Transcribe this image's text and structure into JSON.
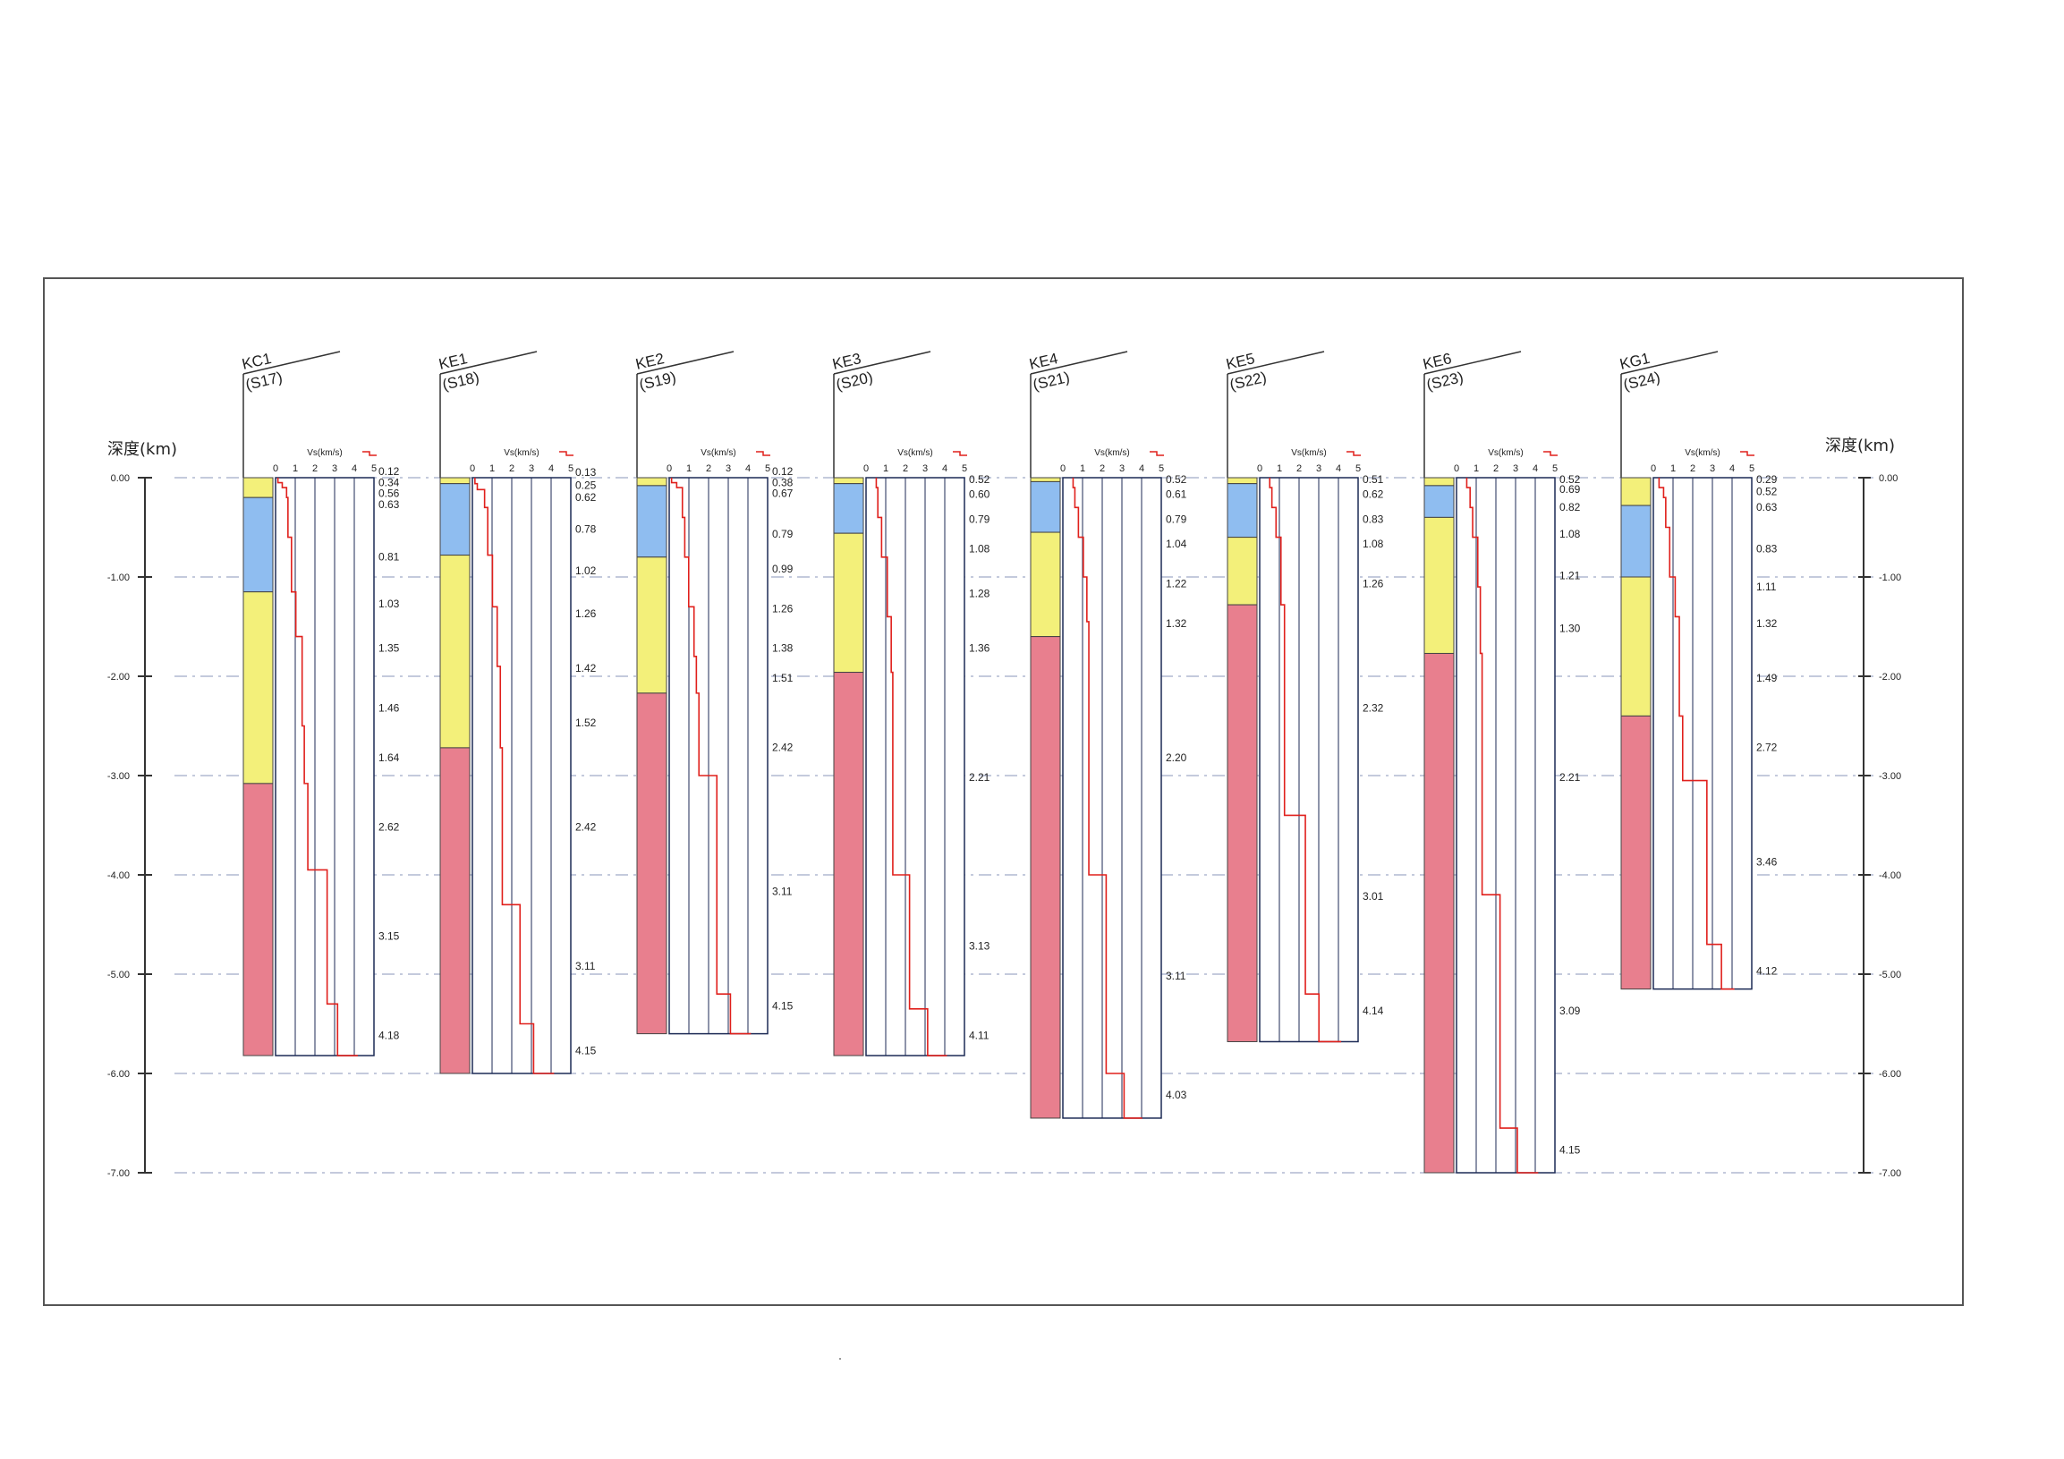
{
  "left_axis_title": "深度(km)",
  "right_axis_title": "深度(km)",
  "depth_ticks": [
    "0.00",
    "-1.00",
    "-2.00",
    "-3.00",
    "-4.00",
    "-5.00",
    "-6.00",
    "-7.00"
  ],
  "vs_axis_label": "Vs(km/s)",
  "vs_ticks": [
    "0",
    "1",
    "2",
    "3",
    "4",
    "5"
  ],
  "colors": {
    "layer_yellow": "#f3f07a",
    "layer_blue": "#8fbdf0",
    "layer_red": "#e87f8e",
    "profile_line": "#e0201c",
    "grid": "#1c2a55"
  },
  "columns": [
    {
      "name": "KC1",
      "code": "(S17)",
      "total_depth": 5.82,
      "layers": [
        {
          "from": 0,
          "to": 0.2,
          "color": "yellow"
        },
        {
          "from": 0.2,
          "to": 1.15,
          "color": "blue"
        },
        {
          "from": 1.15,
          "to": 3.08,
          "color": "yellow"
        },
        {
          "from": 3.08,
          "to": 5.82,
          "color": "red"
        }
      ],
      "profile": [
        {
          "from": 0,
          "to": 0.05,
          "vs": 0.12
        },
        {
          "from": 0.05,
          "to": 0.1,
          "vs": 0.34
        },
        {
          "from": 0.1,
          "to": 0.2,
          "vs": 0.56
        },
        {
          "from": 0.2,
          "to": 0.6,
          "vs": 0.63
        },
        {
          "from": 0.6,
          "to": 1.15,
          "vs": 0.81
        },
        {
          "from": 1.15,
          "to": 1.6,
          "vs": 1.03
        },
        {
          "from": 1.6,
          "to": 2.5,
          "vs": 1.35
        },
        {
          "from": 2.5,
          "to": 3.08,
          "vs": 1.46
        },
        {
          "from": 3.08,
          "to": 3.95,
          "vs": 1.64
        },
        {
          "from": 3.95,
          "to": 5.3,
          "vs": 2.62
        },
        {
          "from": 5.3,
          "to": 5.82,
          "vs": 3.15
        },
        {
          "from": 5.82,
          "to": 5.82,
          "vs": 4.18
        }
      ],
      "labels": [
        {
          "text": "0.12",
          "depth": -0.08
        },
        {
          "text": "0.34",
          "depth": 0.03
        },
        {
          "text": "0.56",
          "depth": 0.14
        },
        {
          "text": "0.63",
          "depth": 0.25
        },
        {
          "text": "0.81",
          "depth": 0.78
        },
        {
          "text": "1.03",
          "depth": 1.25
        },
        {
          "text": "1.35",
          "depth": 1.7
        },
        {
          "text": "1.46",
          "depth": 2.3
        },
        {
          "text": "1.64",
          "depth": 2.8
        },
        {
          "text": "2.62",
          "depth": 3.5
        },
        {
          "text": "3.15",
          "depth": 4.6
        },
        {
          "text": "4.18",
          "depth": 5.6
        }
      ]
    },
    {
      "name": "KE1",
      "code": "(S18)",
      "total_depth": 6.0,
      "layers": [
        {
          "from": 0,
          "to": 0.06,
          "color": "yellow"
        },
        {
          "from": 0.06,
          "to": 0.78,
          "color": "blue"
        },
        {
          "from": 0.78,
          "to": 2.72,
          "color": "yellow"
        },
        {
          "from": 2.72,
          "to": 6.0,
          "color": "red"
        }
      ],
      "profile": [
        {
          "from": 0,
          "to": 0.06,
          "vs": 0.13
        },
        {
          "from": 0.06,
          "to": 0.12,
          "vs": 0.25
        },
        {
          "from": 0.12,
          "to": 0.3,
          "vs": 0.62
        },
        {
          "from": 0.3,
          "to": 0.78,
          "vs": 0.78
        },
        {
          "from": 0.78,
          "to": 1.3,
          "vs": 1.02
        },
        {
          "from": 1.3,
          "to": 1.9,
          "vs": 1.26
        },
        {
          "from": 1.9,
          "to": 2.72,
          "vs": 1.42
        },
        {
          "from": 2.72,
          "to": 4.3,
          "vs": 1.52
        },
        {
          "from": 4.3,
          "to": 5.5,
          "vs": 2.42
        },
        {
          "from": 5.5,
          "to": 6.0,
          "vs": 3.11
        },
        {
          "from": 6.0,
          "to": 6.0,
          "vs": 4.15
        }
      ],
      "labels": [
        {
          "text": "0.13",
          "depth": -0.07
        },
        {
          "text": "0.25",
          "depth": 0.06
        },
        {
          "text": "0.62",
          "depth": 0.18
        },
        {
          "text": "0.78",
          "depth": 0.5
        },
        {
          "text": "1.02",
          "depth": 0.92
        },
        {
          "text": "1.26",
          "depth": 1.35
        },
        {
          "text": "1.42",
          "depth": 1.9
        },
        {
          "text": "1.52",
          "depth": 2.45
        },
        {
          "text": "2.42",
          "depth": 3.5
        },
        {
          "text": "3.11",
          "depth": 4.9
        },
        {
          "text": "4.15",
          "depth": 5.75
        }
      ]
    },
    {
      "name": "KE2",
      "code": "(S19)",
      "total_depth": 5.6,
      "layers": [
        {
          "from": 0,
          "to": 0.08,
          "color": "yellow"
        },
        {
          "from": 0.08,
          "to": 0.8,
          "color": "blue"
        },
        {
          "from": 0.8,
          "to": 2.17,
          "color": "yellow"
        },
        {
          "from": 2.17,
          "to": 5.6,
          "color": "red"
        }
      ],
      "profile": [
        {
          "from": 0,
          "to": 0.05,
          "vs": 0.12
        },
        {
          "from": 0.05,
          "to": 0.1,
          "vs": 0.38
        },
        {
          "from": 0.1,
          "to": 0.4,
          "vs": 0.67
        },
        {
          "from": 0.4,
          "to": 0.8,
          "vs": 0.79
        },
        {
          "from": 0.8,
          "to": 1.3,
          "vs": 0.99
        },
        {
          "from": 1.3,
          "to": 1.8,
          "vs": 1.26
        },
        {
          "from": 1.8,
          "to": 2.17,
          "vs": 1.38
        },
        {
          "from": 2.17,
          "to": 3.0,
          "vs": 1.51
        },
        {
          "from": 3.0,
          "to": 5.2,
          "vs": 2.42
        },
        {
          "from": 5.2,
          "to": 5.6,
          "vs": 3.11
        },
        {
          "from": 5.6,
          "to": 5.6,
          "vs": 4.15
        }
      ],
      "labels": [
        {
          "text": "0.12",
          "depth": -0.08
        },
        {
          "text": "0.38",
          "depth": 0.03
        },
        {
          "text": "0.67",
          "depth": 0.14
        },
        {
          "text": "0.79",
          "depth": 0.55
        },
        {
          "text": "0.99",
          "depth": 0.9
        },
        {
          "text": "1.26",
          "depth": 1.3
        },
        {
          "text": "1.38",
          "depth": 1.7
        },
        {
          "text": "1.51",
          "depth": 2.0
        },
        {
          "text": "2.42",
          "depth": 2.7
        },
        {
          "text": "3.11",
          "depth": 4.15
        },
        {
          "text": "4.15",
          "depth": 5.3
        }
      ]
    },
    {
      "name": "KE3",
      "code": "(S20)",
      "total_depth": 5.82,
      "layers": [
        {
          "from": 0,
          "to": 0.06,
          "color": "yellow"
        },
        {
          "from": 0.06,
          "to": 0.56,
          "color": "blue"
        },
        {
          "from": 0.56,
          "to": 1.96,
          "color": "yellow"
        },
        {
          "from": 1.96,
          "to": 5.82,
          "color": "red"
        }
      ],
      "profile": [
        {
          "from": 0,
          "to": 0.1,
          "vs": 0.52
        },
        {
          "from": 0.1,
          "to": 0.4,
          "vs": 0.6
        },
        {
          "from": 0.4,
          "to": 0.8,
          "vs": 0.79
        },
        {
          "from": 0.8,
          "to": 1.4,
          "vs": 1.08
        },
        {
          "from": 1.4,
          "to": 1.96,
          "vs": 1.28
        },
        {
          "from": 1.96,
          "to": 4.0,
          "vs": 1.36
        },
        {
          "from": 4.0,
          "to": 5.35,
          "vs": 2.21
        },
        {
          "from": 5.35,
          "to": 5.82,
          "vs": 3.13
        },
        {
          "from": 5.82,
          "to": 5.82,
          "vs": 4.11
        }
      ],
      "labels": [
        {
          "text": "0.52",
          "depth": 0.0
        },
        {
          "text": "0.60",
          "depth": 0.15
        },
        {
          "text": "0.79",
          "depth": 0.4
        },
        {
          "text": "1.08",
          "depth": 0.7
        },
        {
          "text": "1.28",
          "depth": 1.15
        },
        {
          "text": "1.36",
          "depth": 1.7
        },
        {
          "text": "2.21",
          "depth": 3.0
        },
        {
          "text": "3.13",
          "depth": 4.7
        },
        {
          "text": "4.11",
          "depth": 5.6
        }
      ]
    },
    {
      "name": "KE4",
      "code": "(S21)",
      "total_depth": 6.45,
      "layers": [
        {
          "from": 0,
          "to": 0.04,
          "color": "yellow"
        },
        {
          "from": 0.04,
          "to": 0.55,
          "color": "blue"
        },
        {
          "from": 0.55,
          "to": 1.6,
          "color": "yellow"
        },
        {
          "from": 1.6,
          "to": 6.45,
          "color": "red"
        }
      ],
      "profile": [
        {
          "from": 0,
          "to": 0.1,
          "vs": 0.52
        },
        {
          "from": 0.1,
          "to": 0.3,
          "vs": 0.61
        },
        {
          "from": 0.3,
          "to": 0.6,
          "vs": 0.79
        },
        {
          "from": 0.6,
          "to": 1.0,
          "vs": 1.04
        },
        {
          "from": 1.0,
          "to": 1.45,
          "vs": 1.22
        },
        {
          "from": 1.45,
          "to": 4.0,
          "vs": 1.32
        },
        {
          "from": 4.0,
          "to": 6.0,
          "vs": 2.2
        },
        {
          "from": 6.0,
          "to": 6.45,
          "vs": 3.11
        },
        {
          "from": 6.45,
          "to": 6.45,
          "vs": 4.03
        }
      ],
      "labels": [
        {
          "text": "0.52",
          "depth": 0.0
        },
        {
          "text": "0.61",
          "depth": 0.15
        },
        {
          "text": "0.79",
          "depth": 0.4
        },
        {
          "text": "1.04",
          "depth": 0.65
        },
        {
          "text": "1.22",
          "depth": 1.05
        },
        {
          "text": "1.32",
          "depth": 1.45
        },
        {
          "text": "2.20",
          "depth": 2.8
        },
        {
          "text": "3.11",
          "depth": 5.0
        },
        {
          "text": "4.03",
          "depth": 6.2
        }
      ]
    },
    {
      "name": "KE5",
      "code": "(S22)",
      "total_depth": 5.68,
      "layers": [
        {
          "from": 0,
          "to": 0.06,
          "color": "yellow"
        },
        {
          "from": 0.06,
          "to": 0.6,
          "color": "blue"
        },
        {
          "from": 0.6,
          "to": 1.28,
          "color": "yellow"
        },
        {
          "from": 1.28,
          "to": 5.68,
          "color": "red"
        }
      ],
      "profile": [
        {
          "from": 0,
          "to": 0.1,
          "vs": 0.51
        },
        {
          "from": 0.1,
          "to": 0.3,
          "vs": 0.62
        },
        {
          "from": 0.3,
          "to": 0.6,
          "vs": 0.83
        },
        {
          "from": 0.6,
          "to": 1.28,
          "vs": 1.08
        },
        {
          "from": 1.28,
          "to": 3.4,
          "vs": 1.26
        },
        {
          "from": 3.4,
          "to": 5.2,
          "vs": 2.32
        },
        {
          "from": 5.2,
          "to": 5.68,
          "vs": 3.01
        },
        {
          "from": 5.68,
          "to": 5.68,
          "vs": 4.14
        }
      ],
      "labels": [
        {
          "text": "0.51",
          "depth": 0.0
        },
        {
          "text": "0.62",
          "depth": 0.15
        },
        {
          "text": "0.83",
          "depth": 0.4
        },
        {
          "text": "1.08",
          "depth": 0.65
        },
        {
          "text": "1.26",
          "depth": 1.05
        },
        {
          "text": "2.32",
          "depth": 2.3
        },
        {
          "text": "3.01",
          "depth": 4.2
        },
        {
          "text": "4.14",
          "depth": 5.35
        }
      ]
    },
    {
      "name": "KE6",
      "code": "(S23)",
      "total_depth": 7.0,
      "layers": [
        {
          "from": 0,
          "to": 0.08,
          "color": "yellow"
        },
        {
          "from": 0.08,
          "to": 0.4,
          "color": "blue"
        },
        {
          "from": 0.4,
          "to": 1.77,
          "color": "yellow"
        },
        {
          "from": 1.77,
          "to": 7.0,
          "color": "red"
        }
      ],
      "profile": [
        {
          "from": 0,
          "to": 0.1,
          "vs": 0.52
        },
        {
          "from": 0.1,
          "to": 0.3,
          "vs": 0.69
        },
        {
          "from": 0.3,
          "to": 0.6,
          "vs": 0.82
        },
        {
          "from": 0.6,
          "to": 1.1,
          "vs": 1.08
        },
        {
          "from": 1.1,
          "to": 1.77,
          "vs": 1.21
        },
        {
          "from": 1.77,
          "to": 4.2,
          "vs": 1.3
        },
        {
          "from": 4.2,
          "to": 6.55,
          "vs": 2.21
        },
        {
          "from": 6.55,
          "to": 7.0,
          "vs": 3.09
        },
        {
          "from": 7.0,
          "to": 7.0,
          "vs": 4.15
        }
      ],
      "labels": [
        {
          "text": "0.52",
          "depth": 0.0
        },
        {
          "text": "0.69",
          "depth": 0.1
        },
        {
          "text": "0.82",
          "depth": 0.28
        },
        {
          "text": "1.08",
          "depth": 0.55
        },
        {
          "text": "1.21",
          "depth": 0.97
        },
        {
          "text": "1.30",
          "depth": 1.5
        },
        {
          "text": "2.21",
          "depth": 3.0
        },
        {
          "text": "3.09",
          "depth": 5.35
        },
        {
          "text": "4.15",
          "depth": 6.75
        }
      ]
    },
    {
      "name": "KG1",
      "code": "(S24)",
      "total_depth": 5.15,
      "layers": [
        {
          "from": 0,
          "to": 0.28,
          "color": "yellow"
        },
        {
          "from": 0.28,
          "to": 1.0,
          "color": "blue"
        },
        {
          "from": 1.0,
          "to": 2.4,
          "color": "yellow"
        },
        {
          "from": 2.4,
          "to": 5.15,
          "color": "red"
        }
      ],
      "profile": [
        {
          "from": 0,
          "to": 0.1,
          "vs": 0.29
        },
        {
          "from": 0.1,
          "to": 0.2,
          "vs": 0.52
        },
        {
          "from": 0.2,
          "to": 0.5,
          "vs": 0.63
        },
        {
          "from": 0.5,
          "to": 1.0,
          "vs": 0.83
        },
        {
          "from": 1.0,
          "to": 1.4,
          "vs": 1.11
        },
        {
          "from": 1.4,
          "to": 2.4,
          "vs": 1.32
        },
        {
          "from": 2.4,
          "to": 3.05,
          "vs": 1.49
        },
        {
          "from": 3.05,
          "to": 4.7,
          "vs": 2.72
        },
        {
          "from": 4.7,
          "to": 5.15,
          "vs": 3.46
        },
        {
          "from": 5.15,
          "to": 5.15,
          "vs": 4.12
        }
      ],
      "labels": [
        {
          "text": "0.29",
          "depth": 0.0
        },
        {
          "text": "0.52",
          "depth": 0.12
        },
        {
          "text": "0.63",
          "depth": 0.28
        },
        {
          "text": "0.83",
          "depth": 0.7
        },
        {
          "text": "1.11",
          "depth": 1.08
        },
        {
          "text": "1.32",
          "depth": 1.45
        },
        {
          "text": "1.49",
          "depth": 2.0
        },
        {
          "text": "2.72",
          "depth": 2.7
        },
        {
          "text": "3.46",
          "depth": 3.85
        },
        {
          "text": "4.12",
          "depth": 4.95
        }
      ]
    }
  ]
}
